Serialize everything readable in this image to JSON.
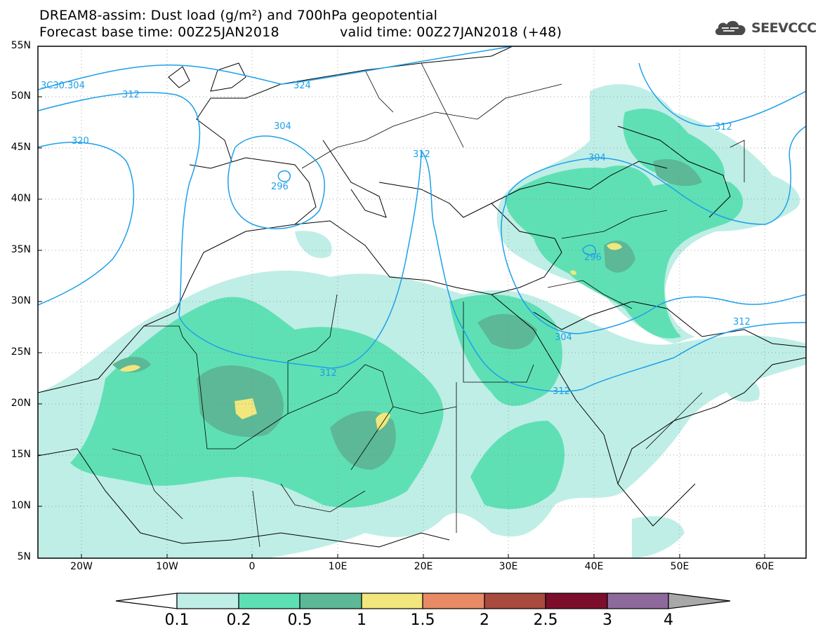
{
  "header": {
    "title_line1": "DREAM8-assim: Dust load (g/m²) and 700hPa geopotential",
    "title_line2_left": "Forecast base time: 00Z25JAN2018",
    "title_line2_right": "valid time: 00Z27JAN2018 (+48)",
    "logo_text": "SEEVCCC"
  },
  "axes": {
    "lat_labels": [
      "55N",
      "50N",
      "45N",
      "40N",
      "35N",
      "30N",
      "25N",
      "20N",
      "15N",
      "10N",
      "5N"
    ],
    "lon_labels": [
      "20W",
      "10W",
      "0",
      "10E",
      "20E",
      "30E",
      "40E",
      "50E",
      "60E"
    ]
  },
  "contour_labels": [
    "3C30.304",
    "324",
    "312",
    "304",
    "320",
    "296",
    "312",
    "304",
    "312",
    "296",
    "312",
    "304",
    "312",
    "312"
  ],
  "colorbar": {
    "levels": [
      "0.1",
      "0.2",
      "0.5",
      "1",
      "1.5",
      "2",
      "2.5",
      "3",
      "4"
    ],
    "colors": [
      "#ffffff",
      "#bfeee6",
      "#5fe0b4",
      "#5cb896",
      "#f1e77d",
      "#e88a66",
      "#a94a3e",
      "#7c0e2c",
      "#8e6a9c",
      "#a8a8a8"
    ]
  },
  "colors": {
    "dust_light": "#bfeee6",
    "dust_mid": "#5fe0b4",
    "dust_dark": "#5cb896",
    "dust_yellow": "#f1e77d",
    "contour": "#1ea0e8"
  }
}
